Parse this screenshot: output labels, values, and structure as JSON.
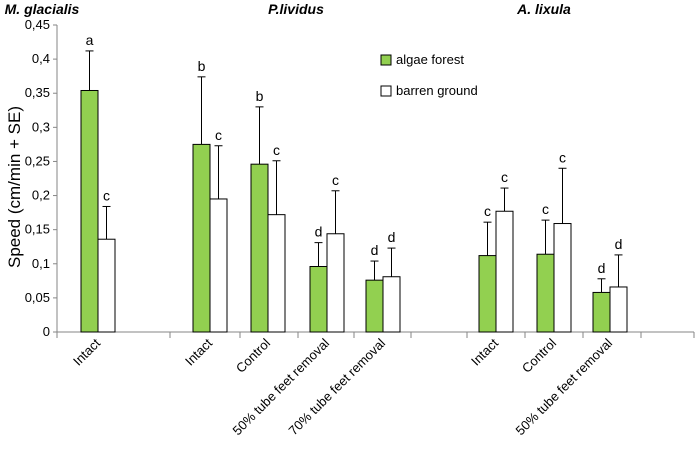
{
  "chart_data": {
    "type": "bar",
    "ylabel": "Speed (cm/min + SE)",
    "ylim": [
      0,
      0.45
    ],
    "ytick_step": 0.05,
    "ytick_labels": [
      "0",
      "0,05",
      "0,1",
      "0,15",
      "0,2",
      "0,25",
      "0,3",
      "0,35",
      "0,4",
      "0,45"
    ],
    "grid": false,
    "legend_position": "top-right",
    "series": [
      {
        "name": "algae forest",
        "color": "#92d050"
      },
      {
        "name": "barren ground",
        "color": "#ffffff"
      }
    ],
    "groups": [
      {
        "name": "M. glacialis",
        "categories": [
          {
            "label": "Intact",
            "values": [
              0.354,
              0.136
            ],
            "errors": [
              0.058,
              0.048
            ],
            "letters": [
              "a",
              "c"
            ]
          }
        ]
      },
      {
        "name": "P.lividus",
        "categories": [
          {
            "label": "Intact",
            "values": [
              0.275,
              0.195
            ],
            "errors": [
              0.099,
              0.078
            ],
            "letters": [
              "b",
              "c"
            ]
          },
          {
            "label": "Control",
            "values": [
              0.246,
              0.172
            ],
            "errors": [
              0.084,
              0.079
            ],
            "letters": [
              "b",
              "c"
            ]
          },
          {
            "label": "50% tube feet removal",
            "values": [
              0.096,
              0.144
            ],
            "errors": [
              0.035,
              0.063
            ],
            "letters": [
              "d",
              "c"
            ]
          },
          {
            "label": "70% tube feet removal",
            "values": [
              0.076,
              0.081
            ],
            "errors": [
              0.028,
              0.042
            ],
            "letters": [
              "d",
              "d"
            ]
          }
        ]
      },
      {
        "name": "A. lixula",
        "categories": [
          {
            "label": "Intact",
            "values": [
              0.112,
              0.177
            ],
            "errors": [
              0.049,
              0.034
            ],
            "letters": [
              "c",
              "c"
            ]
          },
          {
            "label": "Control",
            "values": [
              0.114,
              0.159
            ],
            "errors": [
              0.05,
              0.081
            ],
            "letters": [
              "c",
              "c"
            ]
          },
          {
            "label": "50% tube feet removal",
            "values": [
              0.058,
              0.066
            ],
            "errors": [
              0.02,
              0.047
            ],
            "letters": [
              "d",
              "d"
            ]
          }
        ]
      }
    ]
  }
}
